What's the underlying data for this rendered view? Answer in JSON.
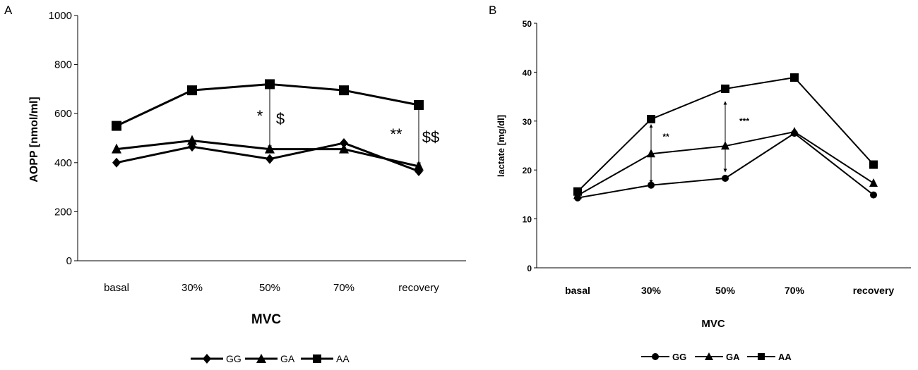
{
  "chart_data": [
    {
      "panel_label": "A",
      "type": "line",
      "ylabel": "AOPP [nmol/ml]",
      "xlabel": "MVC",
      "categories": [
        "basal",
        "30%",
        "50%",
        "70%",
        "recovery"
      ],
      "ylim": [
        0,
        1000
      ],
      "yticks": [
        0,
        200,
        400,
        600,
        800,
        1000
      ],
      "ytick_labels": [
        "0",
        "200",
        "400",
        "600",
        "800",
        "1000"
      ],
      "series": [
        {
          "name": "GG",
          "marker": "diamond",
          "values": [
            400,
            465,
            415,
            480,
            365
          ]
        },
        {
          "name": "GA",
          "marker": "triangle",
          "values": [
            455,
            490,
            455,
            455,
            385
          ]
        },
        {
          "name": "AA",
          "marker": "square",
          "values": [
            550,
            695,
            720,
            695,
            635
          ]
        }
      ],
      "annotations": [
        {
          "text": "*",
          "category": "50%"
        },
        {
          "text": "$",
          "category": "50%"
        },
        {
          "text": "**",
          "category": "recovery"
        },
        {
          "text": "$$",
          "category": "recovery"
        }
      ],
      "arrows": [
        {
          "category": "50%",
          "from": 455,
          "to": 720
        },
        {
          "category": "recovery",
          "from": 385,
          "to": 635
        }
      ],
      "legend_position": "bottom"
    },
    {
      "panel_label": "B",
      "type": "line",
      "ylabel": "lactate [mg/dl]",
      "xlabel": "MVC",
      "categories": [
        "basal",
        "30%",
        "50%",
        "70%",
        "recovery"
      ],
      "ylim": [
        0,
        50
      ],
      "yticks": [
        0,
        10,
        20,
        30,
        40,
        50
      ],
      "ytick_labels": [
        "0",
        "10",
        "20",
        "30",
        "40",
        "50"
      ],
      "series": [
        {
          "name": "GG",
          "marker": "circle",
          "values": [
            14.3,
            16.9,
            18.3,
            27.5,
            14.9
          ]
        },
        {
          "name": "GA",
          "marker": "triangle",
          "values": [
            14.8,
            23.3,
            24.9,
            27.8,
            17.3
          ]
        },
        {
          "name": "AA",
          "marker": "square",
          "values": [
            15.6,
            30.4,
            36.6,
            38.9,
            21.1
          ]
        }
      ],
      "annotations": [
        {
          "text": "**",
          "category": "30%"
        },
        {
          "text": "***",
          "category": "50%"
        }
      ],
      "arrows": [
        {
          "category": "30%",
          "from": 17.3,
          "to": 29.3
        },
        {
          "category": "50%",
          "from": 19.6,
          "to": 34.0
        }
      ],
      "legend_position": "bottom"
    }
  ]
}
